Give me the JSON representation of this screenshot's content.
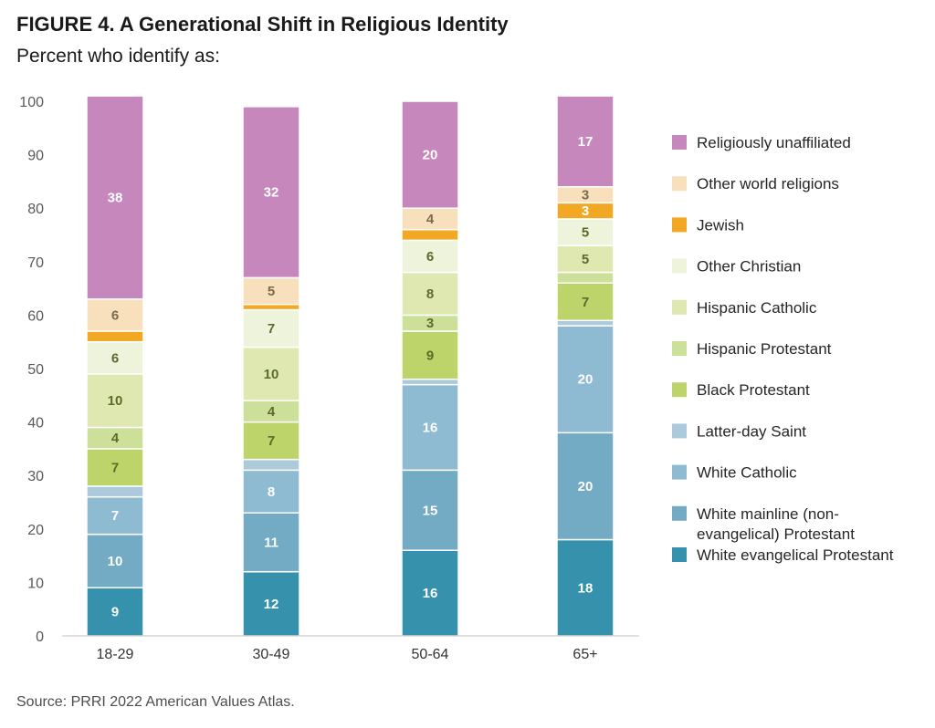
{
  "title": "FIGURE 4.  A Generational Shift in Religious Identity",
  "subtitle": "Percent who identify as:",
  "source": "Source: PRRI 2022 American Values Atlas.",
  "chart_data": {
    "type": "bar",
    "stacked": true,
    "categories": [
      "18-29",
      "30-49",
      "50-64",
      "65+"
    ],
    "ylim": [
      0,
      100
    ],
    "yticks": [
      0,
      10,
      20,
      30,
      40,
      50,
      60,
      70,
      80,
      90,
      100
    ],
    "grid": false,
    "legend_position": "right",
    "series": [
      {
        "name": "White evangelical Protestant",
        "color": "#3591ac",
        "label_color": "#ffffff",
        "values": [
          9,
          12,
          16,
          18
        ],
        "labels": [
          "9",
          "12",
          "16",
          "18"
        ]
      },
      {
        "name": "White mainline (non-evangelical) Protestant",
        "legend_lines": [
          "White mainline (non-",
          "evangelical) Protestant"
        ],
        "color": "#74abc4",
        "label_color": "#ffffff",
        "values": [
          10,
          11,
          15,
          20
        ],
        "labels": [
          "10",
          "11",
          "15",
          "20"
        ]
      },
      {
        "name": "White Catholic",
        "color": "#8ebbd2",
        "label_color": "#ffffff",
        "values": [
          7,
          8,
          16,
          20
        ],
        "labels": [
          "7",
          "8",
          "16",
          "20"
        ]
      },
      {
        "name": "Latter-day Saint",
        "color": "#adc9dc",
        "label_color": "#ffffff",
        "values": [
          2,
          2,
          1,
          1
        ],
        "labels": [
          "",
          "",
          "",
          ""
        ]
      },
      {
        "name": "Black Protestant",
        "color": "#bcd46a",
        "label_color": "#5a6b2a",
        "values": [
          7,
          7,
          9,
          7
        ],
        "labels": [
          "7",
          "7",
          "9",
          "7"
        ]
      },
      {
        "name": "Hispanic Protestant",
        "color": "#cce09a",
        "label_color": "#5a6b2a",
        "values": [
          4,
          4,
          3,
          2
        ],
        "labels": [
          "4",
          "4",
          "3",
          ""
        ]
      },
      {
        "name": "Hispanic Catholic",
        "color": "#dfe8b0",
        "label_color": "#5a6b2a",
        "values": [
          10,
          10,
          8,
          5
        ],
        "labels": [
          "10",
          "10",
          "8",
          "5"
        ]
      },
      {
        "name": "Other Christian",
        "color": "#eef3dc",
        "label_color": "#5a6b2a",
        "values": [
          6,
          7,
          6,
          5
        ],
        "labels": [
          "6",
          "7",
          "6",
          "5"
        ]
      },
      {
        "name": "Jewish",
        "color": "#f3a823",
        "label_color": "#ffffff",
        "values": [
          2,
          1,
          2,
          3
        ],
        "labels": [
          "",
          "",
          "",
          "3"
        ]
      },
      {
        "name": "Other world religions",
        "color": "#f9e0bd",
        "label_color": "#7a6a4e",
        "values": [
          6,
          5,
          4,
          3
        ],
        "labels": [
          "6",
          "5",
          "4",
          "3"
        ]
      },
      {
        "name": "Religiously unaffiliated",
        "color": "#c688bc",
        "label_color": "#ffffff",
        "values": [
          38,
          32,
          20,
          17
        ],
        "labels": [
          "38",
          "32",
          "20",
          "17"
        ]
      }
    ]
  }
}
